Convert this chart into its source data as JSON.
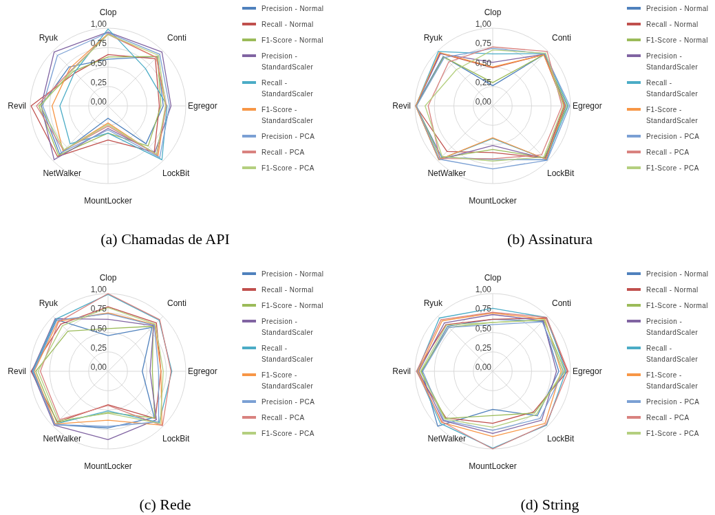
{
  "chart_data": [
    {
      "type": "radar",
      "title": "(a) Chamadas de API",
      "categories": [
        "Clop",
        "Conti",
        "Egregor",
        "LockBit",
        "MountLocker",
        "NetWalker",
        "Revil",
        "Ryuk"
      ],
      "ylim": [
        0,
        1
      ],
      "yticks": [
        {
          "value": 0,
          "label": "0,00"
        },
        {
          "value": 0.25,
          "label": "0,25"
        },
        {
          "value": 0.5,
          "label": "0,50"
        },
        {
          "value": 0.75,
          "label": "0,75"
        },
        {
          "value": 1,
          "label": "1,00"
        }
      ],
      "grid": true,
      "legend": "right",
      "series": [
        {
          "name": "Precision - Normal",
          "color": "#4f81bd",
          "values": [
            0.6,
            0.9,
            0.71,
            0.69,
            0.16,
            0.88,
            0.86,
            0.71
          ]
        },
        {
          "name": "Recall - Normal",
          "color": "#c0504d",
          "values": [
            0.66,
            0.86,
            0.66,
            0.84,
            0.44,
            0.92,
            0.99,
            0.6
          ]
        },
        {
          "name": "F1-Score - Normal",
          "color": "#9bbb59",
          "values": [
            0.63,
            0.9,
            0.68,
            0.73,
            0.35,
            0.9,
            0.89,
            0.63
          ]
        },
        {
          "name": "Precision - StandardScaler",
          "color": "#8064a2",
          "values": [
            0.95,
            0.98,
            0.81,
            0.85,
            0.29,
            0.98,
            0.86,
            0.98
          ]
        },
        {
          "name": "Recall - StandardScaler",
          "color": "#4bacc6",
          "values": [
            0.99,
            0.68,
            0.76,
            0.98,
            0.35,
            0.69,
            0.62,
            0.61
          ]
        },
        {
          "name": "F1-Score - StandardScaler",
          "color": "#f79646",
          "values": [
            0.93,
            0.88,
            0.74,
            0.91,
            0.22,
            0.82,
            0.72,
            0.69
          ]
        },
        {
          "name": "Precision - PCA",
          "color": "#7ba0d4",
          "values": [
            0.94,
            0.94,
            0.79,
            0.94,
            0.31,
            0.85,
            0.84,
            0.92
          ]
        },
        {
          "name": "Recall - PCA",
          "color": "#d9827f",
          "values": [
            0.92,
            0.88,
            0.75,
            0.89,
            0.26,
            0.81,
            0.92,
            0.66
          ]
        },
        {
          "name": "F1-Score - PCA",
          "color": "#b4cf7f",
          "values": [
            0.92,
            0.92,
            0.74,
            0.88,
            0.24,
            0.8,
            0.87,
            0.65
          ]
        }
      ]
    },
    {
      "type": "radar",
      "title": "(b) Assinatura",
      "categories": [
        "Clop",
        "Conti",
        "Egregor",
        "LockBit",
        "MountLocker",
        "NetWalker",
        "Revil",
        "Ryuk"
      ],
      "ylim": [
        0,
        1
      ],
      "yticks": [
        {
          "value": 0,
          "label": "0,00"
        },
        {
          "value": 0.25,
          "label": "0,25"
        },
        {
          "value": 0.5,
          "label": "0,50"
        },
        {
          "value": 0.75,
          "label": "0,75"
        },
        {
          "value": 1,
          "label": "1,00"
        }
      ],
      "grid": true,
      "legend": "right",
      "series": [
        {
          "name": "Precision - Normal",
          "color": "#4f81bd",
          "values": [
            0.26,
            0.94,
            0.94,
            0.98,
            0.69,
            0.93,
            0.99,
            0.9
          ]
        },
        {
          "name": "Recall - Normal",
          "color": "#c0504d",
          "values": [
            0.49,
            0.93,
            0.92,
            0.95,
            0.6,
            0.83,
            0.99,
            0.96
          ]
        },
        {
          "name": "F1-Score - Normal",
          "color": "#9bbb59",
          "values": [
            0.3,
            0.93,
            0.96,
            0.94,
            0.56,
            0.95,
            0.98,
            0.89
          ]
        },
        {
          "name": "Precision - StandardScaler",
          "color": "#8064a2",
          "values": [
            0.56,
            0.94,
            0.93,
            0.96,
            0.51,
            0.98,
            0.99,
            0.95
          ]
        },
        {
          "name": "Recall - StandardScaler",
          "color": "#4bacc6",
          "values": [
            0.67,
            0.95,
            0.97,
            0.97,
            0.42,
            0.98,
            0.99,
            0.99
          ]
        },
        {
          "name": "F1-Score - StandardScaler",
          "color": "#f79646",
          "values": [
            0.5,
            0.93,
            0.93,
            0.97,
            0.41,
            0.98,
            0.99,
            0.97
          ]
        },
        {
          "name": "Precision - PCA",
          "color": "#7ba0d4",
          "values": [
            0.74,
            0.95,
            0.99,
            0.99,
            0.81,
            0.97,
            0.98,
            0.88
          ]
        },
        {
          "name": "Recall - PCA",
          "color": "#d9827f",
          "values": [
            0.76,
            0.99,
            0.89,
            0.89,
            0.68,
            0.96,
            0.83,
            0.8
          ]
        },
        {
          "name": "F1-Score - PCA",
          "color": "#b4cf7f",
          "values": [
            0.72,
            0.96,
            0.91,
            0.93,
            0.71,
            0.92,
            0.87,
            0.66
          ]
        }
      ]
    },
    {
      "type": "radar",
      "title": "(c) Rede",
      "categories": [
        "Clop",
        "Conti",
        "Egregor",
        "LockBit",
        "MountLocker",
        "NetWalker",
        "Revil",
        "Ryuk"
      ],
      "ylim": [
        0,
        1
      ],
      "yticks": [
        {
          "value": 0,
          "label": "0,00"
        },
        {
          "value": 0.25,
          "label": "0,25"
        },
        {
          "value": 0.5,
          "label": "0,50"
        },
        {
          "value": 0.75,
          "label": "0,75"
        },
        {
          "value": 1,
          "label": "1,00"
        }
      ],
      "grid": true,
      "legend": "right",
      "series": [
        {
          "name": "Precision - Normal",
          "color": "#4f81bd",
          "values": [
            0.46,
            0.8,
            0.44,
            0.84,
            0.73,
            0.97,
            0.96,
            0.94
          ]
        },
        {
          "name": "Recall - Normal",
          "color": "#c0504d",
          "values": [
            0.83,
            0.88,
            0.68,
            0.86,
            0.43,
            0.92,
            0.99,
            0.86
          ]
        },
        {
          "name": "F1-Score - Normal",
          "color": "#9bbb59",
          "values": [
            0.55,
            0.82,
            0.57,
            0.85,
            0.53,
            0.93,
            0.93,
            0.73
          ]
        },
        {
          "name": "Precision - StandardScaler",
          "color": "#8064a2",
          "values": [
            0.67,
            0.83,
            0.54,
            0.88,
            0.88,
            0.98,
            0.98,
            0.96
          ]
        },
        {
          "name": "Recall - StandardScaler",
          "color": "#4bacc6",
          "values": [
            0.99,
            0.93,
            0.82,
            0.93,
            0.51,
            0.96,
            0.97,
            0.95
          ]
        },
        {
          "name": "F1-Score - StandardScaler",
          "color": "#f79646",
          "values": [
            0.75,
            0.85,
            0.68,
            0.98,
            0.63,
            0.96,
            0.95,
            0.91
          ]
        },
        {
          "name": "Precision - PCA",
          "color": "#7ba0d4",
          "values": [
            0.74,
            0.84,
            0.65,
            0.92,
            0.71,
            0.97,
            0.96,
            0.93
          ]
        },
        {
          "name": "Recall - PCA",
          "color": "#d9827f",
          "values": [
            1,
            0.94,
            0.81,
            0.99,
            0.44,
            0.88,
            0.87,
            0.9
          ]
        },
        {
          "name": "F1-Score - PCA",
          "color": "#b4cf7f",
          "values": [
            0.82,
            0.86,
            0.71,
            0.95,
            0.54,
            0.9,
            0.9,
            0.83
          ]
        }
      ]
    },
    {
      "type": "radar",
      "title": "(d) String",
      "categories": [
        "Clop",
        "Conti",
        "Egregor",
        "LockBit",
        "MountLocker",
        "NetWalker",
        "Revil",
        "Ryuk"
      ],
      "ylim": [
        0,
        1
      ],
      "yticks": [
        {
          "value": 0,
          "label": "0,00"
        },
        {
          "value": 0.25,
          "label": "0,25"
        },
        {
          "value": 0.5,
          "label": "0,50"
        },
        {
          "value": 0.75,
          "label": "0,75"
        },
        {
          "value": 1,
          "label": "1,00"
        }
      ],
      "grid": true,
      "legend": "right",
      "series": [
        {
          "name": "Precision - Normal",
          "color": "#4f81bd",
          "values": [
            0.67,
            0.91,
            0.85,
            0.81,
            0.49,
            1,
            0.91,
            0.82
          ]
        },
        {
          "name": "Recall - Normal",
          "color": "#c0504d",
          "values": [
            0.67,
            0.97,
            0.96,
            0.74,
            0.67,
            0.85,
            0.98,
            0.85
          ]
        },
        {
          "name": "F1-Score - Normal",
          "color": "#9bbb59",
          "values": [
            0.63,
            0.93,
            0.93,
            0.76,
            0.57,
            0.86,
            0.92,
            0.8
          ]
        },
        {
          "name": "Precision - StandardScaler",
          "color": "#8064a2",
          "values": [
            0.73,
            0.92,
            0.82,
            0.89,
            0.8,
            0.9,
            0.95,
            0.88
          ]
        },
        {
          "name": "Recall - StandardScaler",
          "color": "#4bacc6",
          "values": [
            0.81,
            0.98,
            0.94,
            0.98,
            0.99,
            0.95,
            0.97,
            0.97
          ]
        },
        {
          "name": "F1-Score - StandardScaler",
          "color": "#f79646",
          "values": [
            0.75,
            0.95,
            0.88,
            0.95,
            0.84,
            0.93,
            0.96,
            0.92
          ]
        },
        {
          "name": "Precision - PCA",
          "color": "#7ba0d4",
          "values": [
            0.6,
            0.9,
            0.91,
            0.86,
            0.76,
            0.89,
            0.9,
            0.8
          ]
        },
        {
          "name": "Recall - PCA",
          "color": "#d9827f",
          "values": [
            0.76,
            0.98,
            0.97,
            0.97,
            1,
            0.92,
            0.98,
            0.94
          ]
        },
        {
          "name": "F1-Score - PCA",
          "color": "#b4cf7f",
          "values": [
            0.63,
            0.94,
            0.9,
            0.79,
            0.72,
            0.87,
            0.93,
            0.84
          ]
        }
      ]
    }
  ]
}
